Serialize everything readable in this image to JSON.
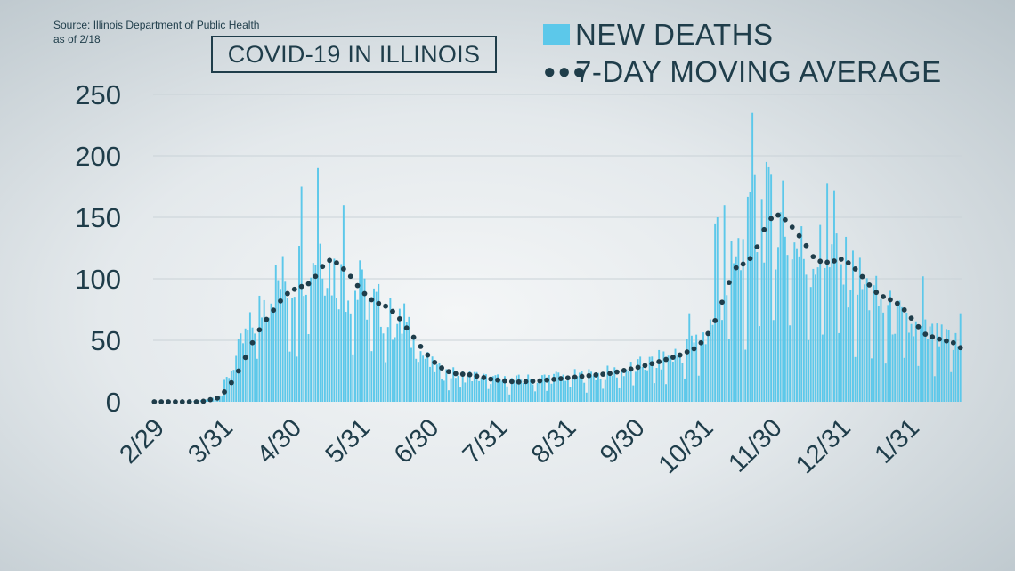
{
  "source": "Source: Illinois Department of Public Health",
  "as_of": "as of 2/18",
  "colors": {
    "bar": "#5cc8ea",
    "dot": "#1f3d4a",
    "text": "#1f3d4a",
    "grid": "#c9d2d7"
  },
  "chart_data": {
    "type": "bar",
    "title": "COVID-19 IN ILLINOIS",
    "xlabel": "",
    "ylabel": "",
    "ylim": [
      0,
      250
    ],
    "yticks": [
      0,
      50,
      100,
      150,
      200,
      250
    ],
    "x_start": "2/29",
    "x_end": "2/18",
    "xticks": [
      "2/29",
      "3/31",
      "4/30",
      "5/31",
      "6/30",
      "7/31",
      "8/31",
      "9/30",
      "10/31",
      "11/30",
      "12/31",
      "1/31"
    ],
    "grid": true,
    "legend": "top-right",
    "series": [
      {
        "name": "NEW DEATHS",
        "type": "bar",
        "anchors": [
          [
            0,
            0
          ],
          [
            15,
            0
          ],
          [
            23,
            2
          ],
          [
            28,
            6
          ],
          [
            32,
            22
          ],
          [
            37,
            45
          ],
          [
            42,
            62
          ],
          [
            47,
            82
          ],
          [
            52,
            95
          ],
          [
            57,
            100
          ],
          [
            62,
            108
          ],
          [
            67,
            118
          ],
          [
            71,
            128
          ],
          [
            74,
            112
          ],
          [
            77,
            105
          ],
          [
            82,
            95
          ],
          [
            87,
            90
          ],
          [
            92,
            82
          ],
          [
            97,
            76
          ],
          [
            102,
            66
          ],
          [
            108,
            58
          ],
          [
            113,
            44
          ],
          [
            118,
            30
          ],
          [
            123,
            24
          ],
          [
            130,
            22
          ],
          [
            140,
            20
          ],
          [
            150,
            17
          ],
          [
            160,
            18
          ],
          [
            170,
            20
          ],
          [
            180,
            21
          ],
          [
            190,
            22
          ],
          [
            200,
            25
          ],
          [
            210,
            30
          ],
          [
            220,
            35
          ],
          [
            230,
            45
          ],
          [
            236,
            55
          ],
          [
            240,
            70
          ],
          [
            244,
            90
          ],
          [
            248,
            110
          ],
          [
            252,
            122
          ],
          [
            256,
            140
          ],
          [
            260,
            155
          ],
          [
            264,
            150
          ],
          [
            270,
            142
          ],
          [
            276,
            122
          ],
          [
            282,
            118
          ],
          [
            288,
            120
          ],
          [
            294,
            108
          ],
          [
            300,
            100
          ],
          [
            306,
            88
          ],
          [
            312,
            76
          ],
          [
            318,
            68
          ],
          [
            324,
            60
          ],
          [
            330,
            55
          ],
          [
            336,
            50
          ],
          [
            345,
            46
          ]
        ],
        "spikes": [
          [
            70,
            190
          ],
          [
            63,
            175
          ],
          [
            81,
            160
          ],
          [
            88,
            115
          ],
          [
            107,
            80
          ],
          [
            229,
            72
          ],
          [
            240,
            145
          ],
          [
            241,
            150
          ],
          [
            244,
            160
          ],
          [
            256,
            235
          ],
          [
            257,
            185
          ],
          [
            262,
            195
          ],
          [
            269,
            180
          ],
          [
            288,
            178
          ],
          [
            291,
            172
          ],
          [
            329,
            102
          ],
          [
            345,
            72
          ]
        ],
        "dips": [
          26,
          29,
          44,
          58,
          61,
          66,
          85,
          93,
          99,
          126,
          131,
          143,
          152,
          163,
          168,
          178,
          185,
          192,
          199,
          205,
          214,
          219,
          227,
          233,
          246,
          253,
          259,
          265,
          272,
          280,
          286,
          293,
          300,
          307,
          313,
          321,
          327,
          334,
          341
        ]
      },
      {
        "name": "7-DAY MOVING AVERAGE",
        "type": "dots",
        "anchors": [
          [
            0,
            0
          ],
          [
            20,
            0
          ],
          [
            27,
            3
          ],
          [
            30,
            8
          ],
          [
            34,
            18
          ],
          [
            38,
            32
          ],
          [
            42,
            48
          ],
          [
            46,
            62
          ],
          [
            50,
            72
          ],
          [
            54,
            82
          ],
          [
            58,
            90
          ],
          [
            62,
            93
          ],
          [
            66,
            96
          ],
          [
            70,
            104
          ],
          [
            73,
            113
          ],
          [
            76,
            116
          ],
          [
            80,
            110
          ],
          [
            84,
            102
          ],
          [
            88,
            92
          ],
          [
            92,
            84
          ],
          [
            96,
            80
          ],
          [
            100,
            77
          ],
          [
            104,
            70
          ],
          [
            108,
            60
          ],
          [
            112,
            50
          ],
          [
            116,
            40
          ],
          [
            120,
            32
          ],
          [
            124,
            26
          ],
          [
            128,
            23
          ],
          [
            135,
            22
          ],
          [
            145,
            18
          ],
          [
            155,
            16
          ],
          [
            165,
            17
          ],
          [
            175,
            19
          ],
          [
            185,
            21
          ],
          [
            195,
            23
          ],
          [
            205,
            27
          ],
          [
            215,
            32
          ],
          [
            225,
            38
          ],
          [
            232,
            44
          ],
          [
            236,
            52
          ],
          [
            240,
            66
          ],
          [
            244,
            86
          ],
          [
            248,
            108
          ],
          [
            252,
            112
          ],
          [
            256,
            118
          ],
          [
            259,
            130
          ],
          [
            262,
            145
          ],
          [
            266,
            153
          ],
          [
            270,
            148
          ],
          [
            274,
            140
          ],
          [
            278,
            130
          ],
          [
            282,
            118
          ],
          [
            286,
            113
          ],
          [
            290,
            114
          ],
          [
            294,
            116
          ],
          [
            298,
            112
          ],
          [
            302,
            104
          ],
          [
            306,
            95
          ],
          [
            310,
            87
          ],
          [
            314,
            84
          ],
          [
            318,
            80
          ],
          [
            322,
            73
          ],
          [
            326,
            63
          ],
          [
            330,
            55
          ],
          [
            334,
            52
          ],
          [
            338,
            50
          ],
          [
            342,
            48
          ],
          [
            345,
            44
          ]
        ]
      }
    ],
    "num_days": 346
  }
}
